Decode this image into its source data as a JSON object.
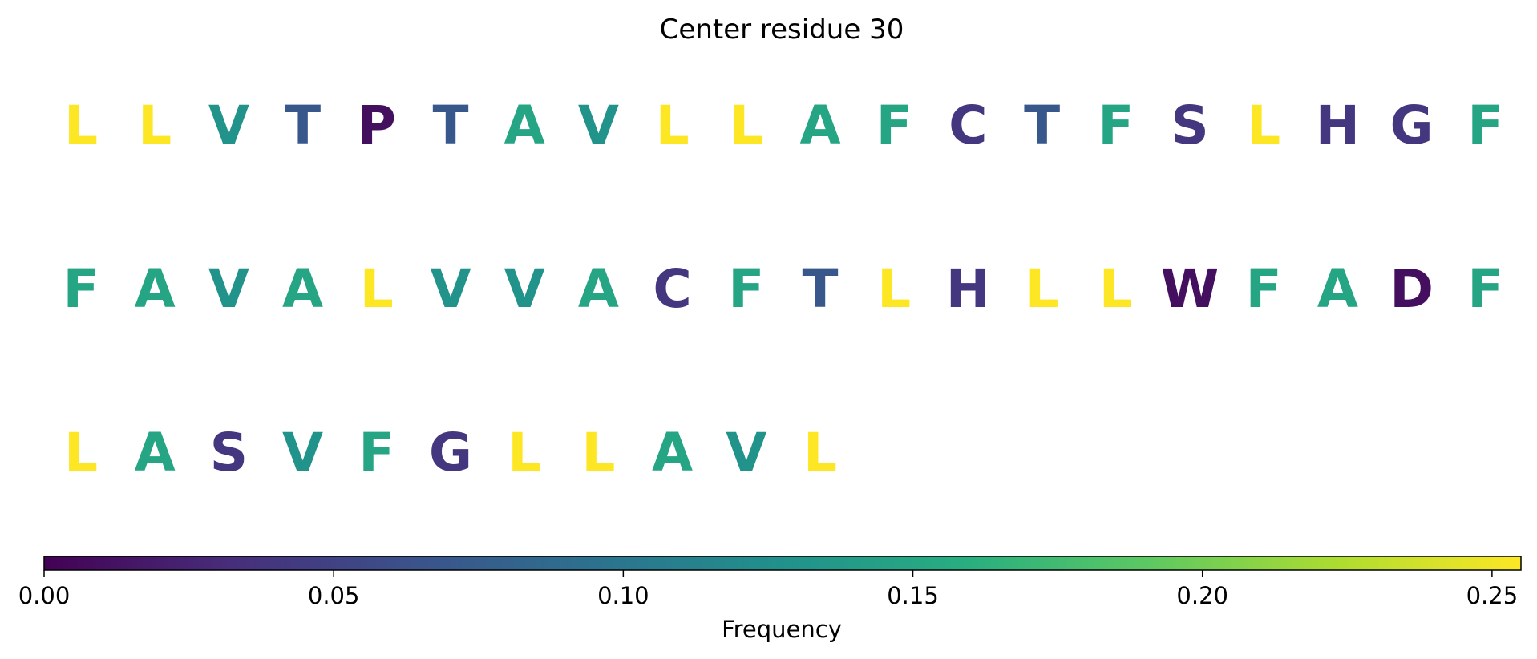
{
  "chart_data": {
    "type": "sequence-heatmap",
    "title": "Center residue 30",
    "residues_per_row": 20,
    "sequence": [
      {
        "residue": "L",
        "frequency": 0.26
      },
      {
        "residue": "L",
        "frequency": 0.26
      },
      {
        "residue": "V",
        "frequency": 0.13
      },
      {
        "residue": "T",
        "frequency": 0.07
      },
      {
        "residue": "P",
        "frequency": 0.01
      },
      {
        "residue": "T",
        "frequency": 0.07
      },
      {
        "residue": "A",
        "frequency": 0.15
      },
      {
        "residue": "V",
        "frequency": 0.13
      },
      {
        "residue": "L",
        "frequency": 0.26
      },
      {
        "residue": "L",
        "frequency": 0.26
      },
      {
        "residue": "A",
        "frequency": 0.15
      },
      {
        "residue": "F",
        "frequency": 0.15
      },
      {
        "residue": "C",
        "frequency": 0.04
      },
      {
        "residue": "T",
        "frequency": 0.07
      },
      {
        "residue": "F",
        "frequency": 0.15
      },
      {
        "residue": "S",
        "frequency": 0.04
      },
      {
        "residue": "L",
        "frequency": 0.26
      },
      {
        "residue": "H",
        "frequency": 0.04
      },
      {
        "residue": "G",
        "frequency": 0.04
      },
      {
        "residue": "F",
        "frequency": 0.15
      },
      {
        "residue": "F",
        "frequency": 0.15
      },
      {
        "residue": "A",
        "frequency": 0.15
      },
      {
        "residue": "V",
        "frequency": 0.13
      },
      {
        "residue": "A",
        "frequency": 0.15
      },
      {
        "residue": "L",
        "frequency": 0.26
      },
      {
        "residue": "V",
        "frequency": 0.13
      },
      {
        "residue": "V",
        "frequency": 0.13
      },
      {
        "residue": "A",
        "frequency": 0.15
      },
      {
        "residue": "C",
        "frequency": 0.04
      },
      {
        "residue": "F",
        "frequency": 0.15
      },
      {
        "residue": "T",
        "frequency": 0.07
      },
      {
        "residue": "L",
        "frequency": 0.26
      },
      {
        "residue": "H",
        "frequency": 0.04
      },
      {
        "residue": "L",
        "frequency": 0.26
      },
      {
        "residue": "L",
        "frequency": 0.26
      },
      {
        "residue": "W",
        "frequency": 0.01
      },
      {
        "residue": "F",
        "frequency": 0.15
      },
      {
        "residue": "A",
        "frequency": 0.15
      },
      {
        "residue": "D",
        "frequency": 0.01
      },
      {
        "residue": "F",
        "frequency": 0.15
      },
      {
        "residue": "L",
        "frequency": 0.26
      },
      {
        "residue": "A",
        "frequency": 0.15
      },
      {
        "residue": "S",
        "frequency": 0.04
      },
      {
        "residue": "V",
        "frequency": 0.13
      },
      {
        "residue": "F",
        "frequency": 0.15
      },
      {
        "residue": "G",
        "frequency": 0.04
      },
      {
        "residue": "L",
        "frequency": 0.26
      },
      {
        "residue": "L",
        "frequency": 0.26
      },
      {
        "residue": "A",
        "frequency": 0.15
      },
      {
        "residue": "V",
        "frequency": 0.13
      },
      {
        "residue": "L",
        "frequency": 0.26
      }
    ],
    "colorbar": {
      "label": "Frequency",
      "colormap": "viridis",
      "vmin": 0.0,
      "vmax": 0.255,
      "ticks": [
        0.0,
        0.05,
        0.1,
        0.15,
        0.2,
        0.25
      ],
      "tick_labels": [
        "0.00",
        "0.05",
        "0.10",
        "0.15",
        "0.20",
        "0.25"
      ],
      "orientation": "horizontal",
      "placement": "bottom"
    }
  }
}
